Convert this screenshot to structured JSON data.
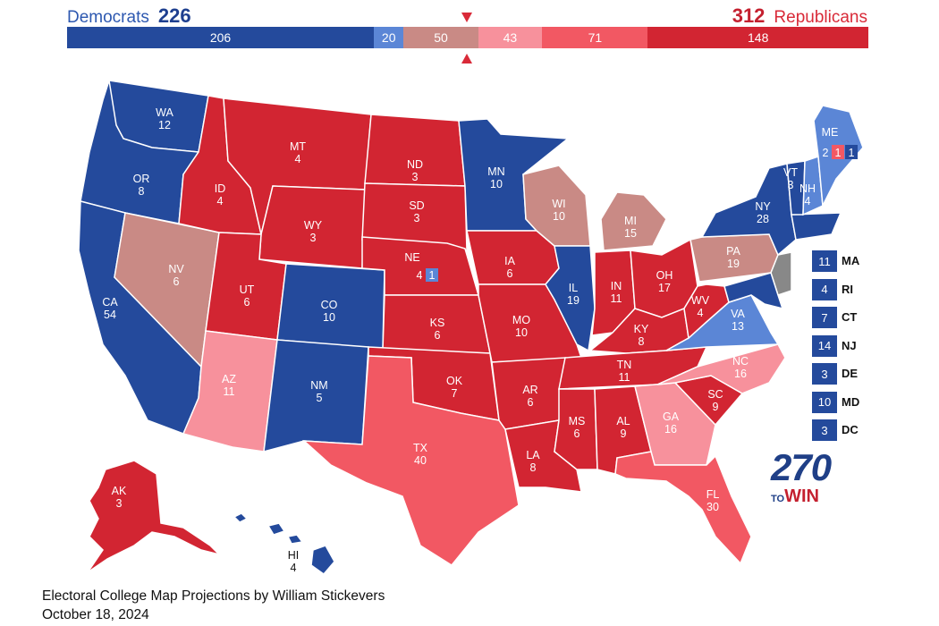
{
  "header": {
    "dem_label": "Democrats",
    "dem_total": "226",
    "rep_total": "312",
    "rep_label": "Republicans"
  },
  "bar_segments": [
    {
      "value": 206,
      "label": "206",
      "color": "#244a9c"
    },
    {
      "value": 20,
      "label": "20",
      "color": "#5b86d6"
    },
    {
      "value": 50,
      "label": "50",
      "color": "#c98a85"
    },
    {
      "value": 43,
      "label": "43",
      "color": "#f7919c"
    },
    {
      "value": 71,
      "label": "71",
      "color": "#f25863"
    },
    {
      "value": 148,
      "label": "148",
      "color": "#d22532"
    }
  ],
  "colors": {
    "safe_dem": "#244a9c",
    "lean_dem": "#5b86d6",
    "tossup": "#c98a85",
    "tilt_rep": "#f7919c",
    "lean_rep": "#f25863",
    "safe_rep": "#d22532"
  },
  "states": [
    {
      "abbr": "WA",
      "ev": "12",
      "rating": "safe_dem"
    },
    {
      "abbr": "OR",
      "ev": "8",
      "rating": "safe_dem"
    },
    {
      "abbr": "CA",
      "ev": "54",
      "rating": "safe_dem"
    },
    {
      "abbr": "NV",
      "ev": "6",
      "rating": "tossup"
    },
    {
      "abbr": "ID",
      "ev": "4",
      "rating": "safe_rep"
    },
    {
      "abbr": "MT",
      "ev": "4",
      "rating": "safe_rep"
    },
    {
      "abbr": "WY",
      "ev": "3",
      "rating": "safe_rep"
    },
    {
      "abbr": "UT",
      "ev": "6",
      "rating": "safe_rep"
    },
    {
      "abbr": "AZ",
      "ev": "11",
      "rating": "tilt_rep"
    },
    {
      "abbr": "CO",
      "ev": "10",
      "rating": "safe_dem"
    },
    {
      "abbr": "NM",
      "ev": "5",
      "rating": "safe_dem"
    },
    {
      "abbr": "ND",
      "ev": "3",
      "rating": "safe_rep"
    },
    {
      "abbr": "SD",
      "ev": "3",
      "rating": "safe_rep"
    },
    {
      "abbr": "NE",
      "ev": "4",
      "rating": "safe_rep"
    },
    {
      "abbr": "KS",
      "ev": "6",
      "rating": "safe_rep"
    },
    {
      "abbr": "OK",
      "ev": "7",
      "rating": "safe_rep"
    },
    {
      "abbr": "TX",
      "ev": "40",
      "rating": "lean_rep"
    },
    {
      "abbr": "MN",
      "ev": "10",
      "rating": "safe_dem"
    },
    {
      "abbr": "IA",
      "ev": "6",
      "rating": "safe_rep"
    },
    {
      "abbr": "MO",
      "ev": "10",
      "rating": "safe_rep"
    },
    {
      "abbr": "AR",
      "ev": "6",
      "rating": "safe_rep"
    },
    {
      "abbr": "LA",
      "ev": "8",
      "rating": "safe_rep"
    },
    {
      "abbr": "WI",
      "ev": "10",
      "rating": "tossup"
    },
    {
      "abbr": "IL",
      "ev": "19",
      "rating": "safe_dem"
    },
    {
      "abbr": "MI",
      "ev": "15",
      "rating": "tossup"
    },
    {
      "abbr": "IN",
      "ev": "11",
      "rating": "safe_rep"
    },
    {
      "abbr": "OH",
      "ev": "17",
      "rating": "safe_rep"
    },
    {
      "abbr": "KY",
      "ev": "8",
      "rating": "safe_rep"
    },
    {
      "abbr": "TN",
      "ev": "11",
      "rating": "safe_rep"
    },
    {
      "abbr": "MS",
      "ev": "6",
      "rating": "safe_rep"
    },
    {
      "abbr": "AL",
      "ev": "9",
      "rating": "safe_rep"
    },
    {
      "abbr": "GA",
      "ev": "16",
      "rating": "tilt_rep"
    },
    {
      "abbr": "FL",
      "ev": "30",
      "rating": "lean_rep"
    },
    {
      "abbr": "SC",
      "ev": "9",
      "rating": "safe_rep"
    },
    {
      "abbr": "NC",
      "ev": "16",
      "rating": "tilt_rep"
    },
    {
      "abbr": "VA",
      "ev": "13",
      "rating": "lean_dem"
    },
    {
      "abbr": "WV",
      "ev": "4",
      "rating": "safe_rep"
    },
    {
      "abbr": "PA",
      "ev": "19",
      "rating": "tossup"
    },
    {
      "abbr": "NY",
      "ev": "28",
      "rating": "safe_dem"
    },
    {
      "abbr": "VT",
      "ev": "3",
      "rating": "safe_dem"
    },
    {
      "abbr": "NH",
      "ev": "4",
      "rating": "lean_dem"
    },
    {
      "abbr": "ME",
      "ev": "2",
      "rating": "lean_dem"
    },
    {
      "abbr": "AK",
      "ev": "3",
      "rating": "safe_rep"
    },
    {
      "abbr": "HI",
      "ev": "4",
      "rating": "safe_dem"
    }
  ],
  "split_districts": {
    "ne_district": {
      "ev": "1",
      "rating": "lean_dem"
    },
    "me_district_1": {
      "ev": "1",
      "rating": "lean_rep"
    },
    "me_district_2": {
      "ev": "1",
      "rating": "safe_dem"
    }
  },
  "small_states": [
    {
      "abbr": "MA",
      "ev": "11",
      "rating": "safe_dem"
    },
    {
      "abbr": "RI",
      "ev": "4",
      "rating": "safe_dem"
    },
    {
      "abbr": "CT",
      "ev": "7",
      "rating": "safe_dem"
    },
    {
      "abbr": "NJ",
      "ev": "14",
      "rating": "safe_dem"
    },
    {
      "abbr": "DE",
      "ev": "3",
      "rating": "safe_dem"
    },
    {
      "abbr": "MD",
      "ev": "10",
      "rating": "safe_dem"
    },
    {
      "abbr": "DC",
      "ev": "3",
      "rating": "safe_dem"
    }
  ],
  "logo": {
    "number": "270",
    "to": "TO",
    "win": "WIN"
  },
  "credit": {
    "line1": "Electoral College Map Projections by William Stickevers",
    "line2": "October 18, 2024"
  }
}
